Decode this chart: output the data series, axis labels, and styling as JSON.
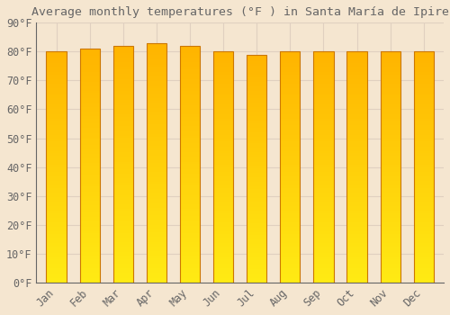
{
  "title": "Average monthly temperatures (°F ) in Santa María de Ipire",
  "months": [
    "Jan",
    "Feb",
    "Mar",
    "Apr",
    "May",
    "Jun",
    "Jul",
    "Aug",
    "Sep",
    "Oct",
    "Nov",
    "Dec"
  ],
  "values": [
    80,
    81,
    82,
    83,
    82,
    80,
    79,
    80,
    80,
    80,
    80,
    80
  ],
  "bar_color_main": "#FFA500",
  "bar_color_light": "#FFD060",
  "bar_edge_color": "#CC7700",
  "background_color": "#F5E6D0",
  "grid_color": "#E0D0C0",
  "text_color": "#666666",
  "ylim": [
    0,
    90
  ],
  "ytick_interval": 10,
  "title_fontsize": 9.5,
  "tick_fontsize": 8.5,
  "font_family": "monospace",
  "bar_width": 0.6
}
